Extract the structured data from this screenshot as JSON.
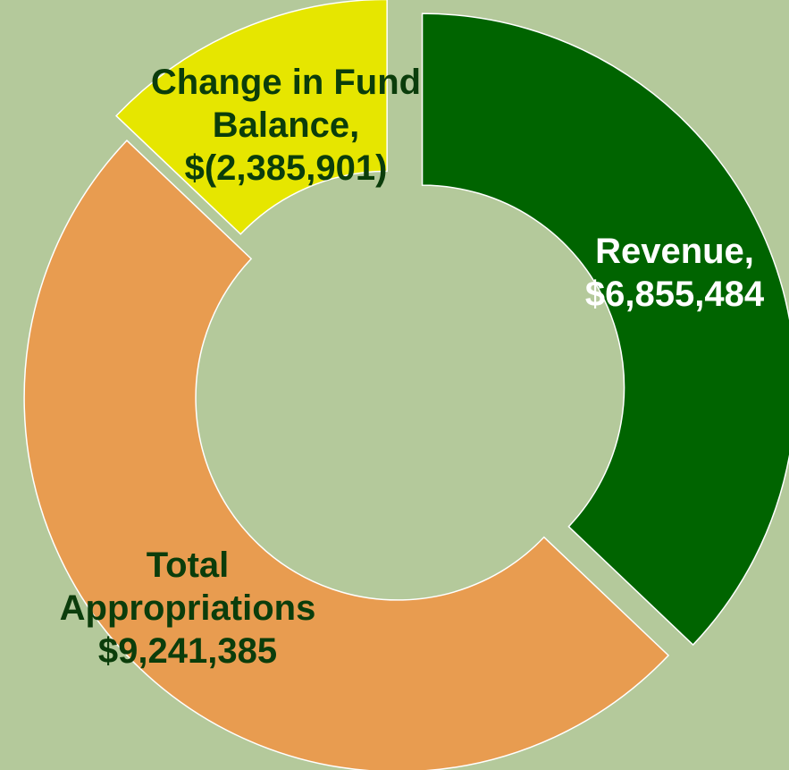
{
  "chart_data": {
    "type": "donut",
    "categories": [
      "Revenue,",
      "Total Appropriations",
      "Change in Fund Balance,"
    ],
    "values": [
      6855484,
      9241385,
      -2385901
    ],
    "value_labels": [
      "$6,855,484",
      "$9,241,385",
      "$(2,385,901)"
    ],
    "colors": [
      "#006400",
      "#e89c50",
      "#e6e600"
    ],
    "label_colors": [
      "#ffffff",
      "#0b3d0b",
      "#0b3d0b"
    ]
  }
}
